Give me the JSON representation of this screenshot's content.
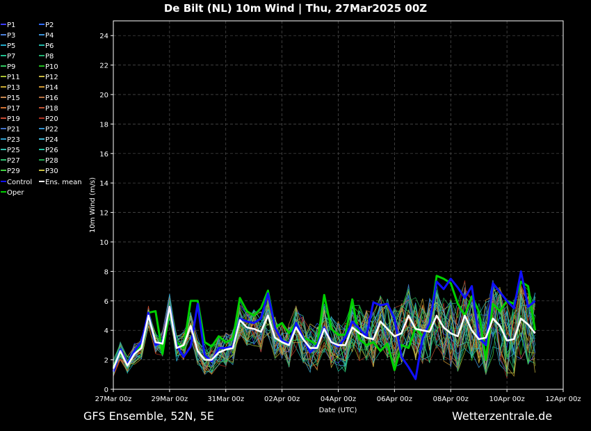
{
  "header": {
    "title": "De Bilt  (NL)  10m Wind | Thu, 27Mar2025 00Z"
  },
  "footer": {
    "source": "GFS Ensemble, 52N, 5E",
    "site": "Wetterzentrale.de"
  },
  "chart_data": {
    "type": "line",
    "title": "De Bilt  (NL)  10m Wind | Thu, 27Mar2025 00Z",
    "xlabel": "Date (UTC)",
    "ylabel": "10m Wind (m/s)",
    "ylim": [
      0,
      25
    ],
    "xlim": [
      "2025-03-27 00z",
      "2025-04-12 00z"
    ],
    "step_hours": 6,
    "xticks": [
      "27Mar 00z",
      "29Mar 00z",
      "31Mar 00z",
      "02Apr 00z",
      "04Apr 00z",
      "06Apr 00z",
      "08Apr 00z",
      "10Apr 00z",
      "12Apr 00z"
    ],
    "yticks": [
      0,
      2,
      4,
      6,
      8,
      10,
      12,
      14,
      16,
      18,
      20,
      22,
      24
    ],
    "grid": true,
    "legend_position": "left",
    "legend": [
      {
        "name": "P1",
        "color": "#3b3bff"
      },
      {
        "name": "P2",
        "color": "#2f6cff"
      },
      {
        "name": "P3",
        "color": "#4a7fd8"
      },
      {
        "name": "P4",
        "color": "#3a93d8"
      },
      {
        "name": "P5",
        "color": "#20a8c8"
      },
      {
        "name": "P6",
        "color": "#20b8a8"
      },
      {
        "name": "P7",
        "color": "#20c090"
      },
      {
        "name": "P8",
        "color": "#20b070"
      },
      {
        "name": "P9",
        "color": "#30c860"
      },
      {
        "name": "P10",
        "color": "#20c020"
      },
      {
        "name": "P11",
        "color": "#a8c030"
      },
      {
        "name": "P12",
        "color": "#c8b840"
      },
      {
        "name": "P13",
        "color": "#c8a830"
      },
      {
        "name": "P14",
        "color": "#d09830"
      },
      {
        "name": "P15",
        "color": "#c88850"
      },
      {
        "name": "P16",
        "color": "#b87040"
      },
      {
        "name": "P17",
        "color": "#d07030"
      },
      {
        "name": "P18",
        "color": "#c05030"
      },
      {
        "name": "P19",
        "color": "#c84830"
      },
      {
        "name": "P20",
        "color": "#b03020"
      },
      {
        "name": "P21",
        "color": "#4070c8"
      },
      {
        "name": "P22",
        "color": "#3090d0"
      },
      {
        "name": "P23",
        "color": "#30a0d0"
      },
      {
        "name": "P24",
        "color": "#40b8d8"
      },
      {
        "name": "P25",
        "color": "#30c0b0"
      },
      {
        "name": "P26",
        "color": "#20c0a0"
      },
      {
        "name": "P27",
        "color": "#30c070"
      },
      {
        "name": "P28",
        "color": "#20a850"
      },
      {
        "name": "P29",
        "color": "#40d040"
      },
      {
        "name": "P30",
        "color": "#c8c040"
      },
      {
        "name": "Control",
        "color": "#1010ff"
      },
      {
        "name": "Ens. mean",
        "color": "#ffffff"
      },
      {
        "name": "Oper",
        "color": "#00d000"
      }
    ],
    "series": [
      {
        "name": "Ens. mean",
        "color": "#ffffff",
        "values": [
          1.4,
          2.6,
          1.6,
          2.4,
          2.8,
          5.0,
          3.2,
          3.1,
          5.6,
          2.8,
          3.0,
          4.3,
          2.6,
          2.0,
          2.0,
          2.5,
          2.7,
          2.8,
          4.7,
          4.2,
          4.1,
          3.9,
          5.0,
          3.5,
          3.2,
          3.0,
          4.2,
          3.4,
          2.8,
          2.8,
          4.1,
          3.2,
          3.0,
          3.0,
          4.2,
          3.8,
          3.5,
          3.4,
          4.6,
          4.1,
          3.6,
          3.8,
          5.0,
          4.1,
          4.0,
          3.9,
          5.0,
          4.2,
          3.8,
          3.6,
          5.0,
          4.0,
          3.4,
          3.5,
          4.8,
          4.3,
          3.3,
          3.4,
          4.8,
          4.4,
          3.8
        ]
      },
      {
        "name": "Control",
        "color": "#1010ff",
        "values": [
          1.2,
          2.7,
          1.7,
          2.6,
          3.2,
          5.2,
          3.0,
          3.2,
          5.6,
          3.0,
          2.2,
          2.9,
          5.8,
          2.3,
          1.9,
          2.8,
          2.8,
          2.9,
          4.8,
          4.6,
          4.5,
          4.8,
          6.5,
          4.2,
          3.3,
          3.1,
          4.5,
          3.5,
          2.5,
          3.0,
          4.2,
          3.2,
          2.9,
          3.5,
          4.6,
          4.1,
          3.6,
          5.9,
          5.7,
          5.8,
          4.8,
          2.2,
          1.5,
          0.7,
          3.5,
          4.5,
          7.3,
          6.8,
          7.5,
          6.9,
          6.2,
          7.0,
          3.5,
          3.0,
          7.2,
          6.6,
          6.0,
          5.5,
          8.0,
          5.6,
          6.0
        ]
      },
      {
        "name": "Oper",
        "color": "#00d000",
        "values": [
          1.5,
          2.5,
          1.8,
          2.5,
          3.0,
          5.2,
          5.3,
          2.4,
          5.5,
          3.2,
          2.8,
          6.0,
          6.0,
          3.2,
          2.9,
          3.6,
          3.2,
          3.4,
          6.2,
          5.3,
          5.0,
          5.5,
          6.7,
          4.2,
          4.5,
          3.8,
          4.5,
          3.5,
          3.3,
          3.0,
          6.4,
          4.1,
          3.7,
          3.7,
          6.1,
          3.4,
          3.0,
          3.2,
          2.6,
          3.1,
          1.3,
          3.0,
          2.8,
          4.2,
          3.6,
          4.3,
          7.7,
          7.5,
          7.2,
          5.8,
          5.0,
          6.3,
          5.3,
          2.0,
          5.8,
          5.3,
          6.0,
          5.8,
          7.3,
          7.0,
          4.0
        ]
      }
    ]
  }
}
